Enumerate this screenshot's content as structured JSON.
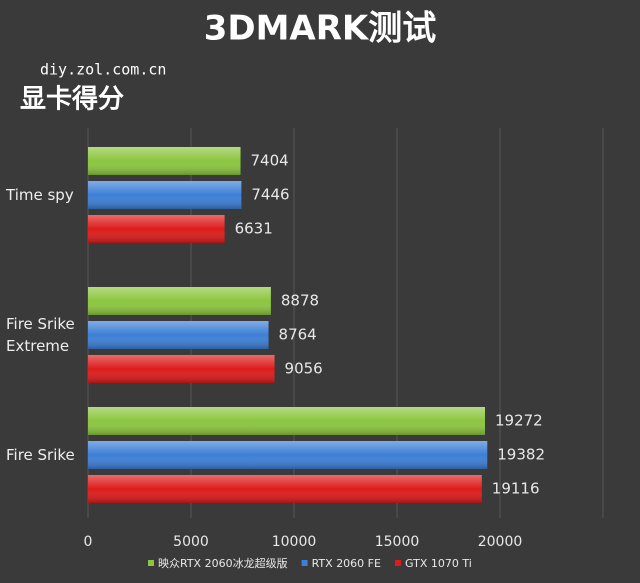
{
  "chart_data": {
    "type": "bar",
    "orientation": "horizontal",
    "title": "3DMARK测试",
    "watermark": "diy.zol.com.cn",
    "subtitle": "显卡得分",
    "categories": [
      "Time spy",
      "Fire Srike Extreme",
      "Fire Srike"
    ],
    "series": [
      {
        "name": "映众RTX 2060冰龙超级版",
        "color": "#8cc63f",
        "values": [
          7404,
          8878,
          19272
        ]
      },
      {
        "name": "RTX 2060 FE",
        "color": "#3d7fd6",
        "values": [
          7446,
          8764,
          19382
        ]
      },
      {
        "name": "GTX 1070 Ti",
        "color": "#dd1c1c",
        "values": [
          6631,
          9056,
          19116
        ]
      }
    ],
    "xlim": [
      0,
      25000
    ],
    "xticks": [
      0,
      5000,
      10000,
      15000,
      20000
    ],
    "grid": true
  }
}
